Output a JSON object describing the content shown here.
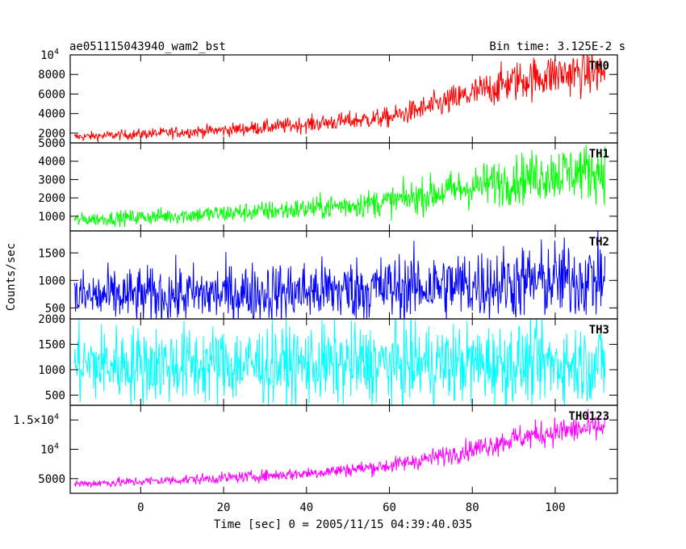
{
  "chart_data": {
    "type": "line",
    "title_left": "ae051115043940_wam2_bst",
    "title_right": "Bin time: 3.125E-2 s",
    "xlabel": "Time [sec] 0 = 2005/11/15 04:39:40.035",
    "ylabel": "Counts/sec",
    "xlim": [
      -17,
      115
    ],
    "x_ticks": [
      0,
      20,
      40,
      60,
      80,
      100
    ],
    "data_x_range": [
      -16,
      112
    ],
    "panels": [
      {
        "name": "TH0",
        "color": "#ff0000",
        "ylim": [
          1000,
          10000
        ],
        "y_ticks": [
          {
            "value": 2000,
            "label": "2000"
          },
          {
            "value": 4000,
            "label": "4000"
          },
          {
            "value": 6000,
            "label": "6000"
          },
          {
            "value": 8000,
            "label": "8000"
          },
          {
            "value": 10000,
            "label": "10",
            "exp": "4"
          }
        ],
        "trend": {
          "x": [
            -16,
            0,
            20,
            40,
            60,
            70,
            80,
            90,
            100,
            112
          ],
          "y": [
            1600,
            1900,
            2300,
            2900,
            3600,
            4700,
            6000,
            7300,
            8000,
            8300
          ]
        },
        "spread": 0.14
      },
      {
        "name": "TH1",
        "color": "#00ff00",
        "ylim": [
          200,
          5000
        ],
        "y_ticks": [
          {
            "value": 1000,
            "label": "1000"
          },
          {
            "value": 2000,
            "label": "2000"
          },
          {
            "value": 3000,
            "label": "3000"
          },
          {
            "value": 4000,
            "label": "4000"
          },
          {
            "value": 5000,
            "label": "5000"
          }
        ],
        "trend": {
          "x": [
            -16,
            0,
            20,
            40,
            60,
            70,
            80,
            90,
            100,
            112
          ],
          "y": [
            800,
            950,
            1150,
            1400,
            1800,
            2200,
            2600,
            3000,
            3350,
            3500
          ]
        },
        "spread": 0.22
      },
      {
        "name": "TH2",
        "color": "#0000ff",
        "ylim": [
          300,
          1900
        ],
        "y_ticks": [
          {
            "value": 500,
            "label": "500"
          },
          {
            "value": 1000,
            "label": "1000"
          },
          {
            "value": 1500,
            "label": "1500"
          }
        ],
        "trend": {
          "x": [
            -16,
            0,
            20,
            40,
            60,
            80,
            100,
            112
          ],
          "y": [
            700,
            720,
            760,
            800,
            860,
            920,
            1000,
            1050
          ]
        },
        "spread": 0.35
      },
      {
        "name": "TH3",
        "color": "#00ffff",
        "ylim": [
          300,
          2000
        ],
        "y_ticks": [
          {
            "value": 500,
            "label": "500"
          },
          {
            "value": 1000,
            "label": "1000"
          },
          {
            "value": 1500,
            "label": "1500"
          },
          {
            "value": 2000,
            "label": "2000"
          }
        ],
        "trend": {
          "x": [
            -16,
            0,
            20,
            40,
            60,
            80,
            100,
            112
          ],
          "y": [
            1100,
            1100,
            1100,
            1100,
            1110,
            1120,
            1120,
            1120
          ]
        },
        "spread": 0.35
      },
      {
        "name": "TH0123",
        "color": "#ff00ff",
        "ylim": [
          2500,
          17500
        ],
        "y_ticks": [
          {
            "value": 5000,
            "label": "5000"
          },
          {
            "value": 10000,
            "label": "10",
            "exp": "4"
          },
          {
            "value": 15000,
            "label": "1.5×10",
            "exp": "4"
          }
        ],
        "trend": {
          "x": [
            -16,
            0,
            20,
            40,
            60,
            70,
            80,
            90,
            100,
            112
          ],
          "y": [
            4100,
            4500,
            5100,
            5900,
            7200,
            8500,
            10000,
            11800,
            13000,
            13800
          ]
        },
        "spread": 0.09
      }
    ]
  }
}
